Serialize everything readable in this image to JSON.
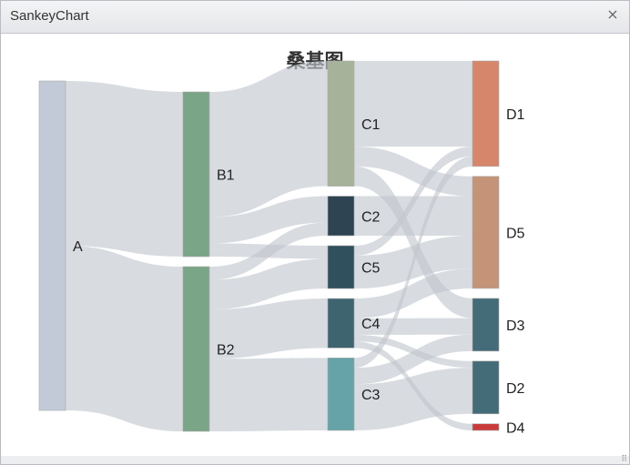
{
  "window": {
    "title": "SankeyChart",
    "close_icon": "close-icon"
  },
  "chart_data": {
    "type": "sankey",
    "title": "桑基图",
    "columns": [
      [
        "A"
      ],
      [
        "B1",
        "B2"
      ],
      [
        "C1",
        "C2",
        "C5",
        "C4",
        "C3"
      ],
      [
        "D1",
        "D5",
        "D3",
        "D2",
        "D4"
      ]
    ],
    "nodes": [
      {
        "name": "A",
        "color": "#c1cad6"
      },
      {
        "name": "B1",
        "color": "#7aa587"
      },
      {
        "name": "B2",
        "color": "#7aa587"
      },
      {
        "name": "C1",
        "color": "#a7b29a"
      },
      {
        "name": "C2",
        "color": "#2e4452"
      },
      {
        "name": "C5",
        "color": "#30505d"
      },
      {
        "name": "C4",
        "color": "#3e6470"
      },
      {
        "name": "C3",
        "color": "#66a3a8"
      },
      {
        "name": "D1",
        "color": "#d6866a"
      },
      {
        "name": "D5",
        "color": "#c59478"
      },
      {
        "name": "D3",
        "color": "#436c78"
      },
      {
        "name": "D2",
        "color": "#436c78"
      },
      {
        "name": "D4",
        "color": "#c93a3a"
      }
    ],
    "links": [
      {
        "source": "A",
        "target": "B1",
        "value": 50
      },
      {
        "source": "A",
        "target": "B2",
        "value": 50
      },
      {
        "source": "B1",
        "target": "C1",
        "value": 38
      },
      {
        "source": "B1",
        "target": "C2",
        "value": 8
      },
      {
        "source": "B1",
        "target": "C5",
        "value": 4
      },
      {
        "source": "B2",
        "target": "C2",
        "value": 4
      },
      {
        "source": "B2",
        "target": "C5",
        "value": 9
      },
      {
        "source": "B2",
        "target": "C4",
        "value": 15
      },
      {
        "source": "B2",
        "target": "C3",
        "value": 22
      },
      {
        "source": "C1",
        "target": "D1",
        "value": 26
      },
      {
        "source": "C1",
        "target": "D5",
        "value": 6
      },
      {
        "source": "C1",
        "target": "D3",
        "value": 6
      },
      {
        "source": "C2",
        "target": "D5",
        "value": 12
      },
      {
        "source": "C5",
        "target": "D1",
        "value": 3
      },
      {
        "source": "C5",
        "target": "D5",
        "value": 10
      },
      {
        "source": "C4",
        "target": "D5",
        "value": 6
      },
      {
        "source": "C4",
        "target": "D3",
        "value": 5
      },
      {
        "source": "C4",
        "target": "D2",
        "value": 2
      },
      {
        "source": "C4",
        "target": "D4",
        "value": 2
      },
      {
        "source": "C3",
        "target": "D1",
        "value": 3
      },
      {
        "source": "C3",
        "target": "D3",
        "value": 5
      },
      {
        "source": "C3",
        "target": "D2",
        "value": 14
      }
    ],
    "link_color": "#c3c8ce"
  }
}
